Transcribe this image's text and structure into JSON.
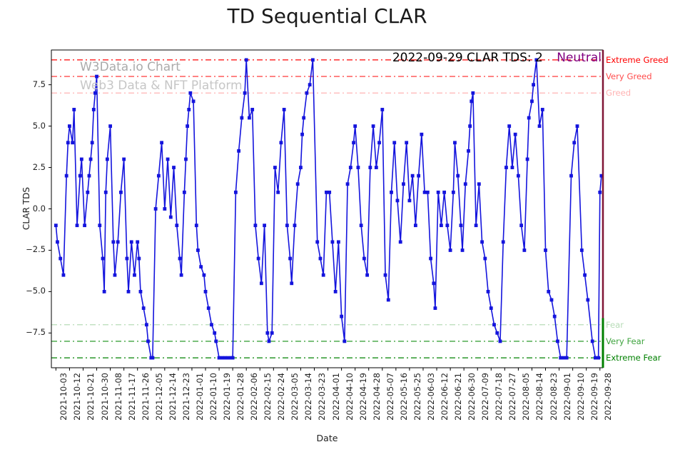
{
  "title": "TD Sequential CLAR",
  "watermark": {
    "line1": "W3Data.io Chart",
    "line2": "Web3 Data & NFT Platform"
  },
  "annotation": {
    "text": "2022-09-29 CLAR TDS: 2",
    "sentiment": "Neutral",
    "sentiment_color": "#800080"
  },
  "chart_data": {
    "type": "line",
    "title": "TD Sequential CLAR",
    "xlabel": "Date",
    "ylabel": "CLAR TDS",
    "ylim": [
      -9.6,
      9.6
    ],
    "x_start_date": "2021-10-03",
    "x_end_date": "2022-09-29",
    "x_tick_step_days": 9,
    "x_tick_labels": [
      "2021-10-03",
      "2021-10-12",
      "2021-10-21",
      "2021-10-30",
      "2021-11-08",
      "2021-11-17",
      "2021-11-26",
      "2021-12-05",
      "2021-12-14",
      "2021-12-23",
      "2022-01-01",
      "2022-01-10",
      "2022-01-19",
      "2022-01-28",
      "2022-02-06",
      "2022-02-15",
      "2022-02-24",
      "2022-03-05",
      "2022-03-14",
      "2022-03-23",
      "2022-04-01",
      "2022-04-10",
      "2022-04-19",
      "2022-04-28",
      "2022-05-07",
      "2022-05-16",
      "2022-05-25",
      "2022-06-03",
      "2022-06-12",
      "2022-06-21",
      "2022-06-30",
      "2022-07-09",
      "2022-07-18",
      "2022-07-27",
      "2022-08-05",
      "2022-08-14",
      "2022-08-23",
      "2022-09-01",
      "2022-09-10",
      "2022-09-19",
      "2022-09-28"
    ],
    "y_ticks": [
      7.5,
      5.0,
      2.5,
      0.0,
      -2.5,
      -5.0,
      -7.5
    ],
    "thresholds": [
      {
        "label": "Extreme Greed",
        "value": 9,
        "color": "#ff0000"
      },
      {
        "label": "Very Greed",
        "value": 8,
        "color": "#ff4d4d"
      },
      {
        "label": "Greed",
        "value": 7,
        "color": "#ffb3b3"
      },
      {
        "label": "Fear",
        "value": -7,
        "color": "#b7dcb7"
      },
      {
        "label": "Very Fear",
        "value": -8,
        "color": "#3fa43f"
      },
      {
        "label": "Extreme Fear",
        "value": -9,
        "color": "#008000"
      }
    ],
    "series": [
      {
        "name": "CLAR TDS",
        "color": "#1414dd",
        "marker": "square",
        "points": [
          [
            0,
            -1
          ],
          [
            1,
            -2
          ],
          [
            3,
            -3
          ],
          [
            5,
            -4
          ],
          [
            7,
            2
          ],
          [
            8,
            4
          ],
          [
            9,
            5
          ],
          [
            11,
            4
          ],
          [
            12,
            6
          ],
          [
            14,
            -1
          ],
          [
            16,
            2
          ],
          [
            17,
            3
          ],
          [
            19,
            -1
          ],
          [
            21,
            1
          ],
          [
            22,
            2
          ],
          [
            23,
            3
          ],
          [
            24,
            4
          ],
          [
            25,
            6
          ],
          [
            26,
            7
          ],
          [
            27,
            8
          ],
          [
            29,
            -1
          ],
          [
            31,
            -3
          ],
          [
            32,
            -5
          ],
          [
            33,
            1
          ],
          [
            34,
            3
          ],
          [
            36,
            5
          ],
          [
            38,
            -2
          ],
          [
            39,
            -4
          ],
          [
            41,
            -2
          ],
          [
            43,
            1
          ],
          [
            45,
            3
          ],
          [
            47,
            -3
          ],
          [
            48,
            -5
          ],
          [
            50,
            -2
          ],
          [
            52,
            -4
          ],
          [
            54,
            -2
          ],
          [
            55,
            -3
          ],
          [
            56,
            -5
          ],
          [
            58,
            -6
          ],
          [
            60,
            -7
          ],
          [
            61,
            -8
          ],
          [
            63,
            -9
          ],
          [
            64,
            -9
          ],
          [
            66,
            0
          ],
          [
            68,
            2
          ],
          [
            70,
            4
          ],
          [
            72,
            0
          ],
          [
            74,
            3
          ],
          [
            76,
            -0.5
          ],
          [
            78,
            2.5
          ],
          [
            80,
            -1
          ],
          [
            82,
            -3
          ],
          [
            83,
            -4
          ],
          [
            85,
            1
          ],
          [
            86,
            3
          ],
          [
            87,
            5
          ],
          [
            88,
            6
          ],
          [
            89,
            7
          ],
          [
            91,
            6.5
          ],
          [
            93,
            -1
          ],
          [
            94,
            -2.5
          ],
          [
            96,
            -3.5
          ],
          [
            98,
            -4
          ],
          [
            99,
            -5
          ],
          [
            101,
            -6
          ],
          [
            103,
            -7
          ],
          [
            105,
            -7.5
          ],
          [
            106,
            -8
          ],
          [
            108,
            -9
          ],
          [
            110,
            -9
          ],
          [
            112,
            -9
          ],
          [
            114,
            -9
          ],
          [
            116,
            -9
          ],
          [
            117,
            -9
          ],
          [
            119,
            1
          ],
          [
            121,
            3.5
          ],
          [
            123,
            5.5
          ],
          [
            125,
            7
          ],
          [
            126,
            9
          ],
          [
            128,
            5.5
          ],
          [
            130,
            6
          ],
          [
            132,
            -1
          ],
          [
            134,
            -3
          ],
          [
            136,
            -4.5
          ],
          [
            138,
            -1
          ],
          [
            140,
            -7.5
          ],
          [
            141,
            -8
          ],
          [
            143,
            -7.5
          ],
          [
            145,
            2.5
          ],
          [
            147,
            1
          ],
          [
            149,
            4
          ],
          [
            151,
            6
          ],
          [
            153,
            -1
          ],
          [
            155,
            -3
          ],
          [
            156,
            -4.5
          ],
          [
            158,
            -1
          ],
          [
            160,
            1.5
          ],
          [
            162,
            2.5
          ],
          [
            163,
            4.5
          ],
          [
            164,
            5.5
          ],
          [
            166,
            7
          ],
          [
            168,
            7.5
          ],
          [
            170,
            9
          ],
          [
            173,
            -2
          ],
          [
            175,
            -3
          ],
          [
            177,
            -4
          ],
          [
            179,
            1
          ],
          [
            181,
            1
          ],
          [
            183,
            -2
          ],
          [
            185,
            -5
          ],
          [
            187,
            -2
          ],
          [
            189,
            -6.5
          ],
          [
            191,
            -8
          ],
          [
            193,
            1.5
          ],
          [
            195,
            2.5
          ],
          [
            197,
            4
          ],
          [
            198,
            5
          ],
          [
            200,
            2.5
          ],
          [
            202,
            -1
          ],
          [
            204,
            -3
          ],
          [
            206,
            -4
          ],
          [
            208,
            2.5
          ],
          [
            210,
            5
          ],
          [
            212,
            2.5
          ],
          [
            214,
            4
          ],
          [
            216,
            6
          ],
          [
            218,
            -4
          ],
          [
            220,
            -5.5
          ],
          [
            222,
            1
          ],
          [
            224,
            4
          ],
          [
            226,
            0.5
          ],
          [
            228,
            -2
          ],
          [
            230,
            1.5
          ],
          [
            232,
            4
          ],
          [
            234,
            0.5
          ],
          [
            236,
            2
          ],
          [
            238,
            -1
          ],
          [
            240,
            2
          ],
          [
            242,
            4.5
          ],
          [
            244,
            1
          ],
          [
            246,
            1
          ],
          [
            248,
            -3
          ],
          [
            250,
            -4.5
          ],
          [
            251,
            -6
          ],
          [
            253,
            1
          ],
          [
            255,
            -1
          ],
          [
            257,
            1
          ],
          [
            259,
            -1
          ],
          [
            261,
            -2.5
          ],
          [
            263,
            1
          ],
          [
            264,
            4
          ],
          [
            266,
            2
          ],
          [
            268,
            -1
          ],
          [
            269,
            -2.5
          ],
          [
            271,
            1.5
          ],
          [
            273,
            3.5
          ],
          [
            274,
            5
          ],
          [
            275,
            6.5
          ],
          [
            276,
            7
          ],
          [
            278,
            -1
          ],
          [
            280,
            1.5
          ],
          [
            282,
            -2
          ],
          [
            284,
            -3
          ],
          [
            286,
            -5
          ],
          [
            288,
            -6
          ],
          [
            290,
            -7
          ],
          [
            292,
            -7.5
          ],
          [
            294,
            -8
          ],
          [
            296,
            -2
          ],
          [
            298,
            2.5
          ],
          [
            300,
            5
          ],
          [
            302,
            2.5
          ],
          [
            304,
            4.5
          ],
          [
            306,
            2
          ],
          [
            308,
            -1
          ],
          [
            310,
            -2.5
          ],
          [
            312,
            3
          ],
          [
            313,
            5.5
          ],
          [
            315,
            6.5
          ],
          [
            316,
            7.5
          ],
          [
            318,
            9
          ],
          [
            320,
            5
          ],
          [
            322,
            6
          ],
          [
            324,
            -2.5
          ],
          [
            326,
            -5
          ],
          [
            328,
            -5.5
          ],
          [
            330,
            -6.5
          ],
          [
            332,
            -8
          ],
          [
            334,
            -9
          ],
          [
            336,
            -9
          ],
          [
            338,
            -9
          ],
          [
            341,
            2
          ],
          [
            343,
            4
          ],
          [
            345,
            5
          ],
          [
            348,
            -2.5
          ],
          [
            350,
            -4
          ],
          [
            352,
            -5.5
          ],
          [
            355,
            -8
          ],
          [
            357,
            -9
          ],
          [
            359,
            -9
          ],
          [
            360,
            1
          ],
          [
            361,
            2
          ]
        ]
      }
    ],
    "right_edge_lines": [
      {
        "color": "#801535",
        "width": 2.5,
        "from": 9.6,
        "to": -9.6
      },
      {
        "color": "#008000",
        "width": 3,
        "from": -6.6,
        "to": -9.6
      }
    ]
  }
}
